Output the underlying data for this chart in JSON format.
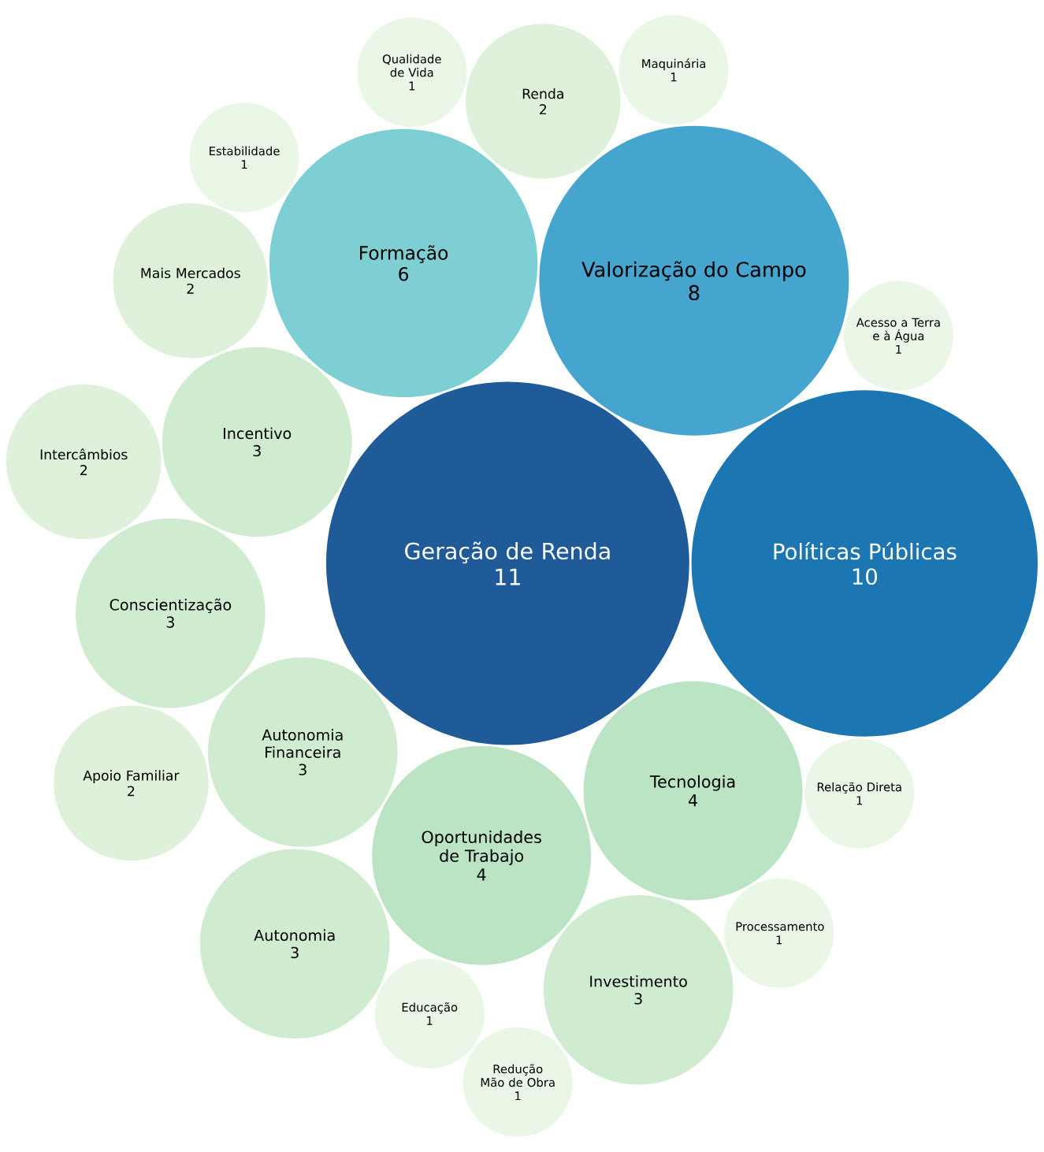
{
  "chart_data": {
    "type": "other",
    "categories": [
      "Geração de Renda",
      "Políticas Públicas",
      "Valorização do Campo",
      "Formação",
      "Tecnologia",
      "Oportunidades de Trabajo",
      "Autonomia Financeira",
      "Incentivo",
      "Conscientização",
      "Autonomia",
      "Investimento",
      "Mais Mercados",
      "Renda",
      "Apoio Familiar",
      "Intercâmbios",
      "Relação Direta",
      "Educação",
      "Processamento",
      "Acesso a Terra e à Água",
      "Estabilidade",
      "Qualidade de Vida",
      "Redução Mão de Obra",
      "Maquinária"
    ],
    "values": [
      11,
      10,
      8,
      6,
      4,
      4,
      3,
      3,
      3,
      3,
      3,
      2,
      2,
      2,
      2,
      1,
      1,
      1,
      1,
      1,
      1,
      1,
      1
    ],
    "colors": [
      "#1f5b98",
      "#1c76b1",
      "#45a5cf",
      "#7ecfd3",
      "#bae4c4",
      "#bae4c4",
      "#d0ecd0",
      "#d0ecd0",
      "#d0ecd0",
      "#d0ecd0",
      "#d0ecd0",
      "#dff1db",
      "#dff1db",
      "#dff1db",
      "#dff1db",
      "#eaf6e6",
      "#eaf6e6",
      "#eaf6e6",
      "#eaf6e6",
      "#eaf6e6",
      "#eaf6e6",
      "#eaf6e6",
      "#eaf6e6"
    ],
    "data_labels": true
  }
}
